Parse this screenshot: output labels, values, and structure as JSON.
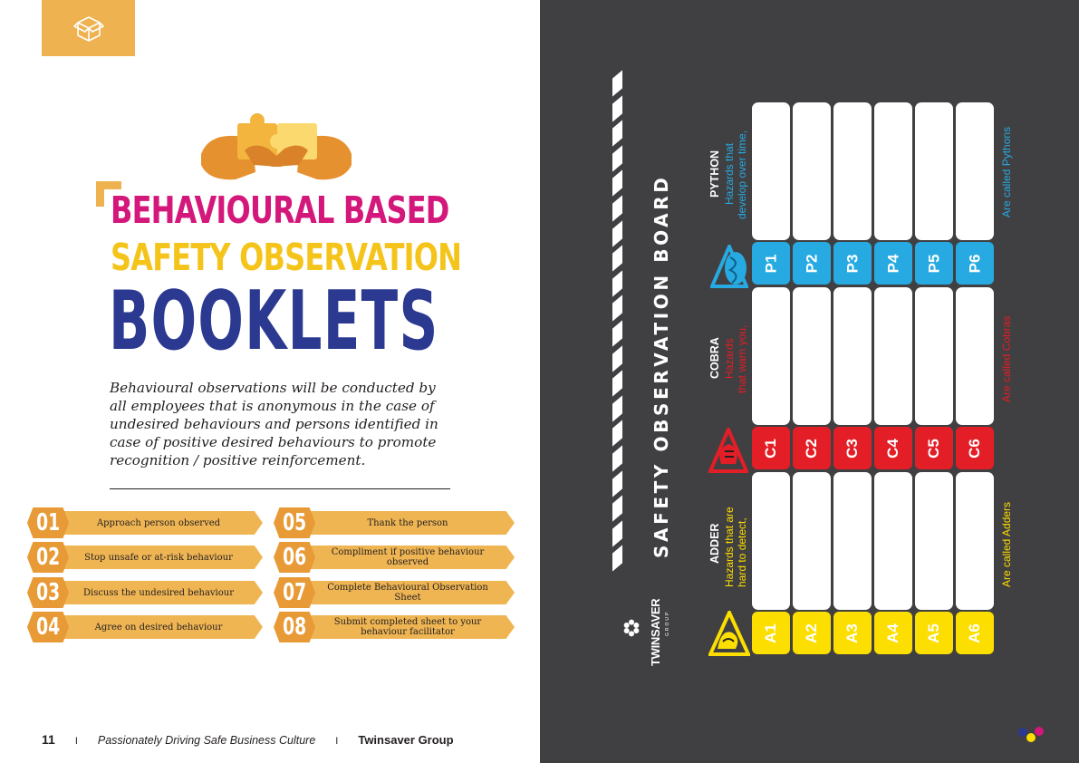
{
  "colors": {
    "accent": "#eeb251",
    "magenta": "#d4177b",
    "yellow": "#f4c41b",
    "navy": "#2b3990",
    "board_bg": "#403f41",
    "python_blue": "#27aae1",
    "cobra_red": "#e31e26",
    "adder_yellow": "#fcde00"
  },
  "icons": {
    "corner": "box-icon",
    "hero": "puzzle-handshake-icon"
  },
  "title": {
    "line1": "BEHAVIOURAL BASED",
    "line2": "SAFETY OBSERVATION",
    "line3": "BOOKLETS"
  },
  "intro": "Behavioural observations will be conducted by all employees that is anonymous in the case of undesired behaviours and persons identified in case of positive desired behaviours to promote recognition / positive reinforcement.",
  "steps": [
    {
      "num": "01",
      "label": "Approach person observed"
    },
    {
      "num": "02",
      "label": "Stop unsafe or at-risk behaviour"
    },
    {
      "num": "03",
      "label": "Discuss the undesired behaviour"
    },
    {
      "num": "04",
      "label": "Agree on desired behaviour"
    },
    {
      "num": "05",
      "label": "Thank the person"
    },
    {
      "num": "06",
      "label": "Compliment if positive behaviour observed"
    },
    {
      "num": "07",
      "label": "Complete Behavioural Observation Sheet"
    },
    {
      "num": "08",
      "label": "Submit completed sheet to your behaviour facilitator"
    }
  ],
  "footer": {
    "page": "11",
    "sep": "I",
    "tagline": "Passionately Driving Safe Business Culture",
    "company": "Twinsaver Group"
  },
  "board": {
    "title": "SAFETY OBSERVATION BOARD",
    "logo": {
      "name": "TWINSAVER",
      "sub": "GROUP"
    },
    "categories": [
      {
        "key": "python",
        "name": "PYTHON",
        "desc1": "Hazards that",
        "desc2": "develop over time,",
        "footer": "Are called Pythons",
        "codes": [
          "P1",
          "P2",
          "P3",
          "P4",
          "P5",
          "P6"
        ],
        "icon": "python-snake-icon"
      },
      {
        "key": "cobra",
        "name": "COBRA",
        "desc1": "Hazards",
        "desc2": "that warn you,",
        "footer": "Are called Cobras",
        "codes": [
          "C1",
          "C2",
          "C3",
          "C4",
          "C5",
          "C6"
        ],
        "icon": "cobra-snake-icon"
      },
      {
        "key": "adder",
        "name": "ADDER",
        "desc1": "Hazards that are",
        "desc2": "hard to detect,",
        "footer": "Are called Adders",
        "codes": [
          "A1",
          "A2",
          "A3",
          "A4",
          "A5",
          "A6"
        ],
        "icon": "adder-snake-icon"
      }
    ]
  }
}
